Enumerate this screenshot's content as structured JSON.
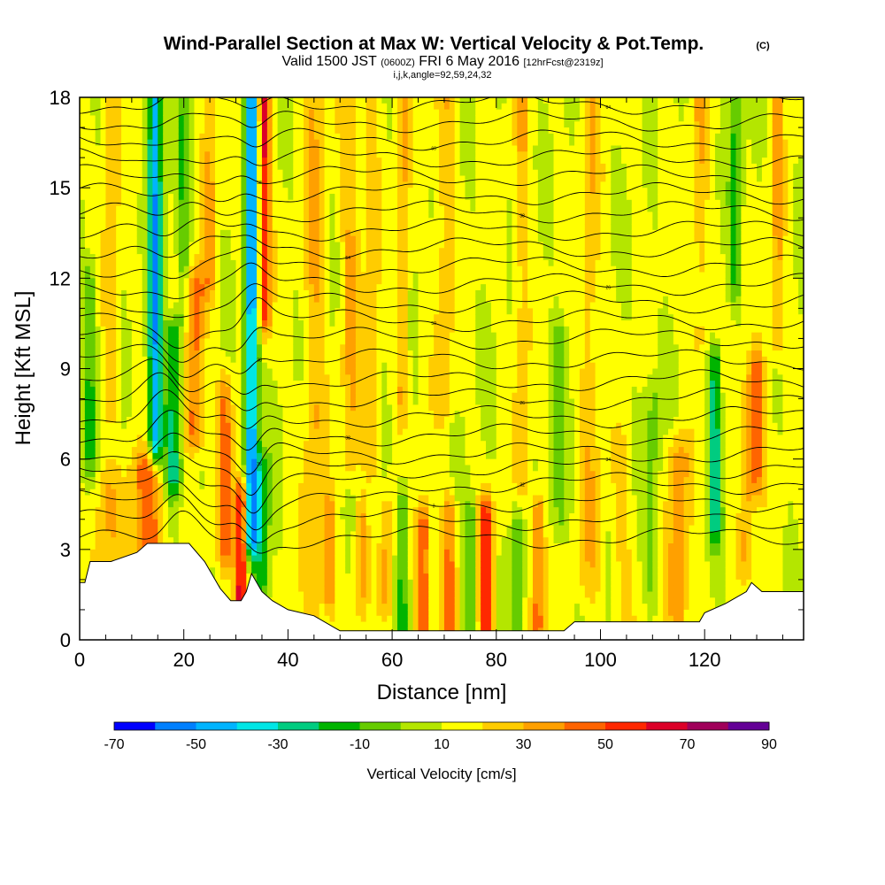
{
  "chart_data": {
    "type": "heatmap",
    "title": "Wind-Parallel Section at Max W: Vertical Velocity & Pot.Temp.",
    "title_mark": "(C)",
    "subtitle": {
      "valid_prefix": "Valid 1500 JST",
      "utc": "(0600Z)",
      "date": "FRI 6 May 2016",
      "fcst": "[12hrFcst@2319z]"
    },
    "grid_info": "i,j,k,angle=92,59,24,32",
    "xlabel": "Distance [nm]",
    "ylabel": "Height [Kft MSL]",
    "xlim": [
      0,
      139
    ],
    "ylim": [
      0,
      18
    ],
    "x_ticks": [
      0,
      20,
      40,
      60,
      80,
      100,
      120
    ],
    "y_ticks": [
      0,
      3,
      6,
      9,
      12,
      15,
      18
    ],
    "colorbar": {
      "title": "Vertical Velocity [cm/s]",
      "labels": [
        "-70",
        "-50",
        "-30",
        "-10",
        "10",
        "30",
        "50",
        "70",
        "90"
      ],
      "colors": [
        "#0000ff",
        "#0080ff",
        "#00b4ff",
        "#00e6e6",
        "#00cc80",
        "#00b400",
        "#66cc00",
        "#b4e600",
        "#ffff00",
        "#ffcc00",
        "#ffa000",
        "#ff6400",
        "#ff2800",
        "#dc0028",
        "#a0005a",
        "#640096"
      ]
    },
    "velocity_features": [
      {
        "x": 14.5,
        "amp": -60,
        "width": 1.3,
        "ybot": 6.5,
        "ytop": 18
      },
      {
        "x": 18,
        "amp": -35,
        "width": 1.6,
        "ybot": 5.5,
        "ytop": 10
      },
      {
        "x": 22,
        "amp": 35,
        "width": 2.0,
        "ybot": 7,
        "ytop": 11.5
      },
      {
        "x": 20,
        "amp": -20,
        "width": 1.2,
        "ybot": 11,
        "ytop": 18
      },
      {
        "x": 25,
        "amp": 20,
        "width": 1.5,
        "ybot": 12,
        "ytop": 18
      },
      {
        "x": 33,
        "amp": -65,
        "width": 1.3,
        "ybot": 3.5,
        "ytop": 18
      },
      {
        "x": 35,
        "amp": -30,
        "width": 1.5,
        "ybot": 1.8,
        "ytop": 5.5
      },
      {
        "x": 35.5,
        "amp": 50,
        "width": 1.2,
        "ybot": 11,
        "ytop": 18
      },
      {
        "x": 31,
        "amp": 60,
        "width": 1.2,
        "ybot": 1.2,
        "ytop": 4.5
      },
      {
        "x": 28,
        "amp": 30,
        "width": 1.4,
        "ybot": 3,
        "ytop": 8
      },
      {
        "x": 13,
        "amp": 35,
        "width": 3.0,
        "ybot": 3,
        "ytop": 5.5
      },
      {
        "x": 5,
        "amp": 15,
        "width": 3.0,
        "ybot": 3,
        "ytop": 5
      },
      {
        "x": 45,
        "amp": 18,
        "width": 2.0,
        "ybot": 0.5,
        "ytop": 18
      },
      {
        "x": 52,
        "amp": 18,
        "width": 1.8,
        "ybot": 6,
        "ytop": 18
      },
      {
        "x": 56,
        "amp": 15,
        "width": 1.5,
        "ybot": 6,
        "ytop": 18
      },
      {
        "x": 48,
        "amp": 25,
        "width": 1.2,
        "ybot": 1.5,
        "ytop": 4
      },
      {
        "x": 54,
        "amp": 22,
        "width": 1.2,
        "ybot": 1.5,
        "ytop": 4
      },
      {
        "x": 59,
        "amp": 20,
        "width": 1.2,
        "ybot": 1.5,
        "ytop": 4
      },
      {
        "x": 66,
        "amp": 40,
        "width": 1.3,
        "ybot": 0.6,
        "ytop": 3.8
      },
      {
        "x": 62,
        "amp": -25,
        "width": 1.2,
        "ybot": 0.5,
        "ytop": 4.5
      },
      {
        "x": 62,
        "amp": 20,
        "width": 1.2,
        "ybot": 8,
        "ytop": 18
      },
      {
        "x": 71,
        "amp": 30,
        "width": 1.3,
        "ybot": 0.5,
        "ytop": 4
      },
      {
        "x": 75,
        "amp": -22,
        "width": 1.2,
        "ybot": 0.5,
        "ytop": 4
      },
      {
        "x": 78,
        "amp": 45,
        "width": 1.3,
        "ybot": 0.5,
        "ytop": 4
      },
      {
        "x": 84,
        "amp": -20,
        "width": 1.2,
        "ybot": 0.5,
        "ytop": 4
      },
      {
        "x": 88,
        "amp": 35,
        "width": 1.3,
        "ybot": 0.5,
        "ytop": 4
      },
      {
        "x": 85,
        "amp": 15,
        "width": 1.5,
        "ybot": 5,
        "ytop": 18
      },
      {
        "x": 70,
        "amp": 15,
        "width": 1.8,
        "ybot": 8,
        "ytop": 18
      },
      {
        "x": 92,
        "amp": -15,
        "width": 1.5,
        "ybot": 4,
        "ytop": 10
      },
      {
        "x": 98,
        "amp": 15,
        "width": 2.0,
        "ybot": 2,
        "ytop": 18
      },
      {
        "x": 104,
        "amp": 12,
        "width": 2.0,
        "ybot": 1,
        "ytop": 6
      },
      {
        "x": 110,
        "amp": -15,
        "width": 1.5,
        "ybot": 2,
        "ytop": 8
      },
      {
        "x": 115,
        "amp": 25,
        "width": 2.0,
        "ybot": 0.5,
        "ytop": 6
      },
      {
        "x": 119,
        "amp": 15,
        "width": 1.5,
        "ybot": 10,
        "ytop": 18
      },
      {
        "x": 122,
        "amp": -40,
        "width": 1.2,
        "ybot": 4,
        "ytop": 9
      },
      {
        "x": 128,
        "amp": 20,
        "width": 1.5,
        "ybot": 3,
        "ytop": 8
      },
      {
        "x": 130,
        "amp": 30,
        "width": 1.5,
        "ybot": 5.5,
        "ytop": 9
      },
      {
        "x": 126,
        "amp": -25,
        "width": 1.2,
        "ybot": 12,
        "ytop": 18
      },
      {
        "x": 134,
        "amp": 20,
        "width": 1.2,
        "ybot": 10,
        "ytop": 18
      },
      {
        "x": 2,
        "amp": -20,
        "width": 1.5,
        "ybot": 6,
        "ytop": 12
      },
      {
        "x": 6,
        "amp": 15,
        "width": 1.5,
        "ybot": 8,
        "ytop": 18
      }
    ],
    "terrain": [
      [
        0,
        1.9
      ],
      [
        1,
        1.9
      ],
      [
        2,
        2.6
      ],
      [
        6,
        2.6
      ],
      [
        11,
        2.9
      ],
      [
        13,
        3.2
      ],
      [
        21,
        3.2
      ],
      [
        24,
        2.6
      ],
      [
        26,
        2.0
      ],
      [
        27,
        1.7
      ],
      [
        29,
        1.3
      ],
      [
        31,
        1.3
      ],
      [
        32,
        1.6
      ],
      [
        33,
        2.2
      ],
      [
        34,
        1.9
      ],
      [
        35,
        1.6
      ],
      [
        37,
        1.3
      ],
      [
        40,
        1.0
      ],
      [
        45,
        0.8
      ],
      [
        50,
        0.3
      ],
      [
        93,
        0.3
      ],
      [
        95,
        0.6
      ],
      [
        100,
        0.6
      ],
      [
        119,
        0.6
      ],
      [
        120,
        0.9
      ],
      [
        124,
        1.2
      ],
      [
        128,
        1.6
      ],
      [
        129,
        1.9
      ],
      [
        131,
        1.6
      ],
      [
        139,
        1.6
      ]
    ],
    "theta_contours": [
      {
        "label": "",
        "ybase": 3.4
      },
      {
        "label": "",
        "ybase": 4.0
      },
      {
        "label": "3",
        "ybase": 4.6
      },
      {
        "label": "32",
        "ybase": 5.2
      },
      {
        "label": "34",
        "ybase": 5.7
      },
      {
        "label": "35",
        "ybase": 6.2
      },
      {
        "label": "38",
        "ybase": 6.8
      },
      {
        "label": "",
        "ybase": 7.4
      },
      {
        "label": "26",
        "ybase": 8.0
      },
      {
        "label": "",
        "ybase": 8.6
      },
      {
        "label": "38",
        "ybase": 9.3
      },
      {
        "label": "",
        "ybase": 10.0
      },
      {
        "label": "50",
        "ybase": 10.6
      },
      {
        "label": "",
        "ybase": 11.2
      },
      {
        "label": "26",
        "ybase": 11.8
      },
      {
        "label": "",
        "ybase": 12.4
      },
      {
        "label": "54",
        "ybase": 13.0
      },
      {
        "label": "",
        "ybase": 13.6
      },
      {
        "label": "38",
        "ybase": 14.2
      },
      {
        "label": "",
        "ybase": 14.8
      },
      {
        "label": "58",
        "ybase": 15.4
      },
      {
        "label": "",
        "ybase": 16.0
      },
      {
        "label": "60",
        "ybase": 16.6
      },
      {
        "label": "",
        "ybase": 17.2
      },
      {
        "label": "64",
        "ybase": 17.8
      }
    ]
  }
}
